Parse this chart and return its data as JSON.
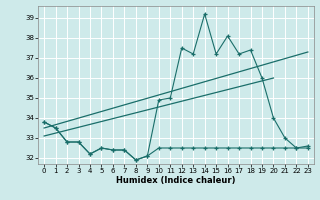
{
  "title": "",
  "xlabel": "Humidex (Indice chaleur)",
  "xlim": [
    -0.5,
    23.5
  ],
  "ylim": [
    31.7,
    39.6
  ],
  "yticks": [
    32,
    33,
    34,
    35,
    36,
    37,
    38,
    39
  ],
  "xticks": [
    0,
    1,
    2,
    3,
    4,
    5,
    6,
    7,
    8,
    9,
    10,
    11,
    12,
    13,
    14,
    15,
    16,
    17,
    18,
    19,
    20,
    21,
    22,
    23
  ],
  "bg_color": "#ceeaea",
  "grid_color": "#ffffff",
  "line_color": "#1a6e6a",
  "series_flat": {
    "x": [
      0,
      1,
      2,
      3,
      4,
      5,
      6,
      7,
      8,
      9,
      10,
      11,
      12,
      13,
      14,
      15,
      16,
      17,
      18,
      19,
      20,
      21,
      22,
      23
    ],
    "y": [
      33.8,
      33.5,
      32.8,
      32.8,
      32.2,
      32.5,
      32.4,
      32.4,
      31.9,
      32.1,
      32.5,
      32.5,
      32.5,
      32.5,
      32.5,
      32.5,
      32.5,
      32.5,
      32.5,
      32.5,
      32.5,
      32.5,
      32.5,
      32.5
    ]
  },
  "series_main": {
    "x": [
      0,
      1,
      2,
      3,
      4,
      5,
      6,
      7,
      8,
      9,
      10,
      11,
      12,
      13,
      14,
      15,
      16,
      17,
      18,
      19,
      20,
      21,
      22,
      23
    ],
    "y": [
      33.8,
      33.5,
      32.8,
      32.8,
      32.2,
      32.5,
      32.4,
      32.4,
      31.9,
      32.1,
      34.9,
      35.0,
      37.5,
      37.2,
      39.2,
      37.2,
      38.1,
      37.2,
      37.4,
      36.0,
      34.0,
      33.0,
      32.5,
      32.6
    ]
  },
  "trend1": {
    "x": [
      0,
      23
    ],
    "y": [
      33.5,
      37.3
    ]
  },
  "trend2": {
    "x": [
      0,
      20
    ],
    "y": [
      33.1,
      36.0
    ]
  }
}
